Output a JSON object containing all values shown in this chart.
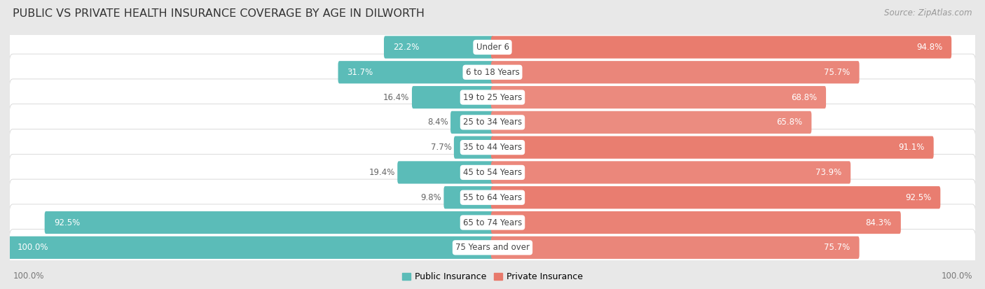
{
  "title": "PUBLIC VS PRIVATE HEALTH INSURANCE COVERAGE BY AGE IN DILWORTH",
  "source": "Source: ZipAtlas.com",
  "categories": [
    "Under 6",
    "6 to 18 Years",
    "19 to 25 Years",
    "25 to 34 Years",
    "35 to 44 Years",
    "45 to 54 Years",
    "55 to 64 Years",
    "65 to 74 Years",
    "75 Years and over"
  ],
  "public_values": [
    22.2,
    31.7,
    16.4,
    8.4,
    7.7,
    19.4,
    9.8,
    92.5,
    100.0
  ],
  "private_values": [
    94.8,
    75.7,
    68.8,
    65.8,
    91.1,
    73.9,
    92.5,
    84.3,
    75.7
  ],
  "public_color": "#5bbcb8",
  "private_color_high": "#e8796b",
  "private_color_low": "#f2b0a8",
  "bg_color": "#e8e8e8",
  "row_white": "#ffffff",
  "row_separator": "#d0d0d0",
  "label_dark": "#555555",
  "label_white": "#ffffff",
  "axis_label": "100.0%",
  "legend_public": "Public Insurance",
  "legend_private": "Private Insurance",
  "max_value": 100.0,
  "title_fontsize": 11.5,
  "source_fontsize": 8.5,
  "bar_label_fontsize": 8.5,
  "category_fontsize": 8.5,
  "axis_fontsize": 8.5,
  "legend_fontsize": 9
}
